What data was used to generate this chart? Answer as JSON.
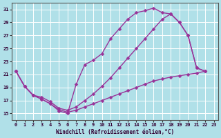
{
  "xlabel": "Windchill (Refroidissement éolien,°C)",
  "background_color": "#b0e0e8",
  "grid_color": "#ffffff",
  "line_color": "#993399",
  "xlim": [
    -0.5,
    23.5
  ],
  "ylim": [
    14.0,
    32.0
  ],
  "yticks": [
    15,
    17,
    19,
    21,
    23,
    25,
    27,
    29,
    31
  ],
  "xticks": [
    0,
    1,
    2,
    3,
    4,
    5,
    6,
    7,
    8,
    9,
    10,
    11,
    12,
    13,
    14,
    15,
    16,
    17,
    18,
    19,
    20,
    21,
    22,
    23
  ],
  "line1_x": [
    0,
    1,
    2,
    3,
    4,
    5,
    6,
    7,
    8,
    9,
    10,
    11,
    12,
    13,
    14,
    15,
    16,
    17,
    18,
    19,
    20,
    21,
    22
  ],
  "line1_y": [
    21.5,
    19.2,
    17.8,
    17.2,
    16.5,
    15.4,
    15.0,
    19.5,
    22.5,
    23.2,
    24.2,
    26.5,
    28.0,
    29.5,
    30.5,
    30.8,
    31.2,
    30.5,
    30.3,
    29.0,
    27.0,
    22.0,
    21.5
  ],
  "line2_x": [
    0,
    1,
    2,
    3,
    4,
    5,
    6,
    7,
    8,
    9,
    10,
    11,
    12,
    13,
    14,
    15,
    16,
    17,
    18,
    19,
    20,
    21,
    22
  ],
  "line2_y": [
    21.5,
    19.2,
    17.8,
    17.2,
    16.5,
    15.6,
    15.2,
    15.5,
    16.0,
    16.5,
    17.0,
    17.5,
    18.0,
    18.5,
    19.0,
    19.5,
    20.0,
    20.3,
    20.6,
    20.8,
    21.0,
    21.2,
    21.5
  ],
  "line3_x": [
    0,
    1,
    2,
    3,
    4,
    5,
    6,
    7,
    8,
    9,
    10,
    11,
    12,
    13,
    14,
    15,
    16,
    17,
    18,
    19,
    20,
    21,
    22
  ],
  "line3_y": [
    21.5,
    19.2,
    17.8,
    17.5,
    16.8,
    15.8,
    15.5,
    16.0,
    17.0,
    18.0,
    19.2,
    20.5,
    22.0,
    23.5,
    25.0,
    26.5,
    28.0,
    29.5,
    30.3,
    29.0,
    27.0,
    22.0,
    21.5
  ],
  "markersize": 2.5,
  "linewidth": 1.0,
  "tick_labelsize": 5.0,
  "xlabel_fontsize": 5.5
}
